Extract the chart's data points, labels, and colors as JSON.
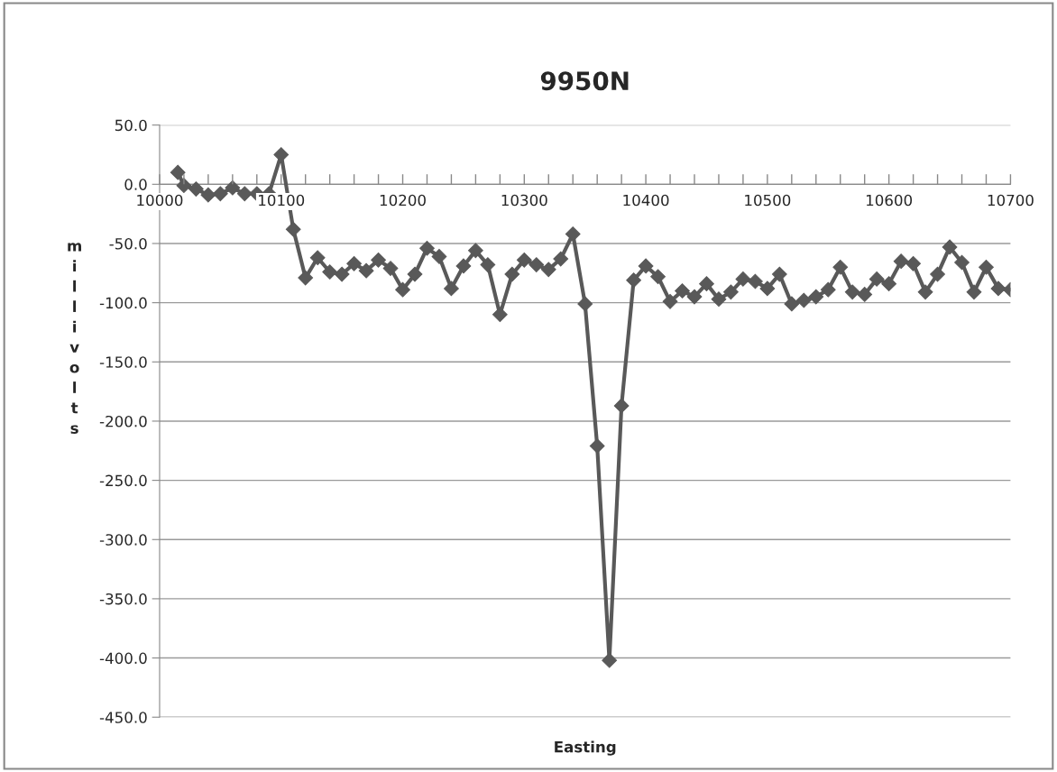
{
  "chart_data": {
    "type": "line",
    "title": "9950N",
    "xlabel": "Easting",
    "ylabel": "millivolts",
    "x": [
      10015,
      10020,
      10030,
      10040,
      10050,
      10060,
      10070,
      10080,
      10090,
      10100,
      10110,
      10120,
      10130,
      10140,
      10150,
      10160,
      10170,
      10180,
      10190,
      10200,
      10210,
      10220,
      10230,
      10240,
      10250,
      10260,
      10270,
      10280,
      10290,
      10300,
      10310,
      10320,
      10330,
      10340,
      10350,
      10360,
      10370,
      10380,
      10390,
      10400,
      10410,
      10420,
      10430,
      10440,
      10450,
      10460,
      10470,
      10480,
      10490,
      10500,
      10510,
      10520,
      10530,
      10540,
      10550,
      10560,
      10570,
      10580,
      10590,
      10600,
      10610,
      10620,
      10630,
      10640,
      10650,
      10660,
      10670,
      10680,
      10690,
      10700
    ],
    "series": [
      {
        "color": "#595959",
        "values": [
          10,
          -1,
          -4,
          -9,
          -8,
          -3,
          -8,
          -8,
          -8,
          25,
          -38,
          -79,
          -62,
          -74,
          -76,
          -67,
          -73,
          -64,
          -71,
          -89,
          -76,
          -54,
          -61,
          -88,
          -69,
          -56,
          -68,
          -110,
          -76,
          -64,
          -68,
          -72,
          -63,
          -42,
          -101,
          -221,
          -402,
          -187,
          -81,
          -69,
          -78,
          -99,
          -90,
          -95,
          -84,
          -97,
          -91,
          -80,
          -82,
          -88,
          -76,
          -101,
          -98,
          -95,
          -89,
          -70,
          -91,
          -93,
          -80,
          -84,
          -65,
          -67,
          -91,
          -76,
          -53,
          -66,
          -91,
          -70,
          -88,
          -89
        ]
      }
    ],
    "xlim": [
      10000,
      10700
    ],
    "ylim": [
      -450,
      50
    ],
    "xticks": [
      10000,
      {
        "value": 10020,
        "label": null
      },
      {
        "value": 10040,
        "label": null
      },
      {
        "value": 10060,
        "label": null
      },
      {
        "value": 10080,
        "label": null
      },
      10100,
      {
        "value": 10120,
        "label": null
      },
      {
        "value": 10140,
        "label": null
      },
      {
        "value": 10160,
        "label": null
      },
      {
        "value": 10180,
        "label": null
      },
      10200,
      {
        "value": 10220,
        "label": null
      },
      {
        "value": 10240,
        "label": null
      },
      {
        "value": 10260,
        "label": null
      },
      {
        "value": 10280,
        "label": null
      },
      10300,
      {
        "value": 10320,
        "label": null
      },
      {
        "value": 10340,
        "label": null
      },
      {
        "value": 10360,
        "label": null
      },
      {
        "value": 10380,
        "label": null
      },
      10400,
      {
        "value": 10420,
        "label": null
      },
      {
        "value": 10440,
        "label": null
      },
      {
        "value": 10460,
        "label": null
      },
      {
        "value": 10480,
        "label": null
      },
      10500,
      {
        "value": 10520,
        "label": null
      },
      {
        "value": 10540,
        "label": null
      },
      {
        "value": 10560,
        "label": null
      },
      {
        "value": 10580,
        "label": null
      },
      10600,
      {
        "value": 10620,
        "label": null
      },
      {
        "value": 10640,
        "label": null
      },
      {
        "value": 10660,
        "label": null
      },
      {
        "value": 10680,
        "label": null
      },
      10700
    ],
    "yticks": [
      {
        "value": 50,
        "label": "50.0"
      },
      {
        "value": 0,
        "label": "0.0"
      },
      {
        "value": -50,
        "label": "-50.0"
      },
      {
        "value": -100,
        "label": "-100.0"
      },
      {
        "value": -150,
        "label": "-150.0"
      },
      {
        "value": -200,
        "label": "-200.0"
      },
      {
        "value": -250,
        "label": "-250.0"
      },
      {
        "value": -300,
        "label": "-300.0"
      },
      {
        "value": -350,
        "label": "-350.0"
      },
      {
        "value": -400,
        "label": "-400.0"
      },
      {
        "value": -450,
        "label": "-450.0"
      }
    ],
    "grid": "y",
    "marker": "diamond",
    "line_style": "solid",
    "legend": false
  }
}
